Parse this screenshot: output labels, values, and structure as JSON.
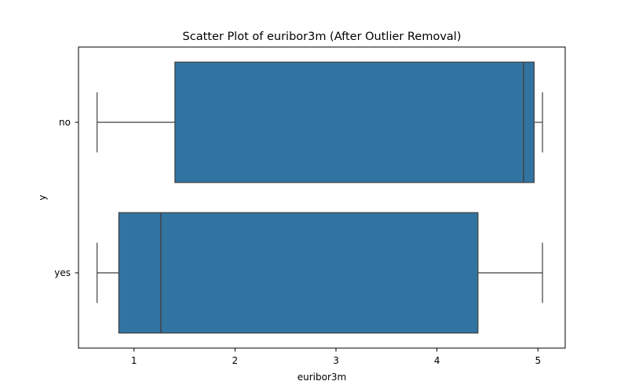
{
  "chart_data": {
    "type": "box",
    "title": "Scatter Plot of euribor3m (After Outlier Removal)",
    "xlabel": "euribor3m",
    "ylabel": "y",
    "xlim": [
      0.45,
      5.27
    ],
    "xticks": [
      1,
      2,
      3,
      4,
      5
    ],
    "categories": [
      "no",
      "yes"
    ],
    "boxes": [
      {
        "category": "no",
        "whisker_low": 0.634,
        "q1": 1.405,
        "median": 4.857,
        "q3": 4.962,
        "whisker_high": 5.045
      },
      {
        "category": "yes",
        "whisker_low": 0.634,
        "q1": 0.849,
        "median": 1.266,
        "q3": 4.406,
        "whisker_high": 5.045
      }
    ],
    "box_color": "#3274a1",
    "line_color": "#3f3f3f",
    "grid": false
  }
}
